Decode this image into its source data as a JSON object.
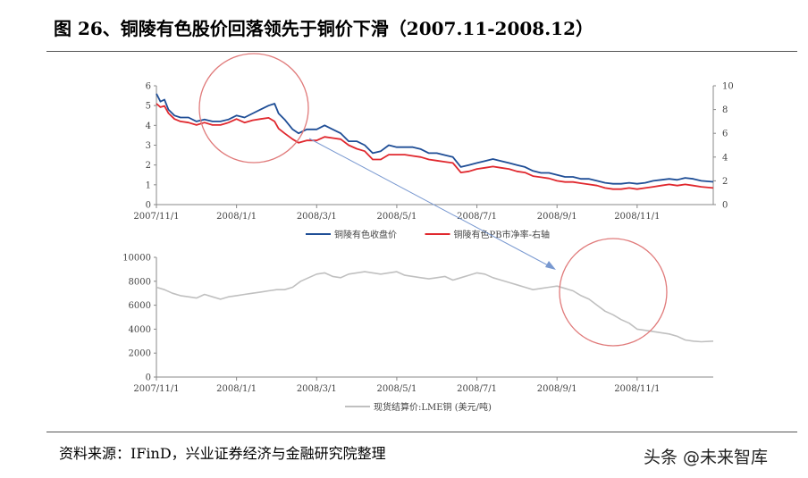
{
  "title": "图 26、铜陵有色股价回落领先于铜价下滑（2007.11-2008.12）",
  "source": "资料来源：IFinD，兴业证券经济与金融研究院整理",
  "watermark": "头条 @未来智库",
  "colors": {
    "blue": "#1f4e96",
    "red": "#e0282e",
    "gray": "#c0c0c0",
    "circle": "#e07a7a",
    "arrow": "#7898d0"
  },
  "chart_data": [
    {
      "type": "line",
      "title": "",
      "x_tick_labels": [
        "2007/11/1",
        "2008/1/1",
        "2008/3/1",
        "2008/5/1",
        "2008/7/1",
        "2008/9/1",
        "2008/11/1"
      ],
      "x_tick_months": [
        0,
        2,
        4,
        6,
        8,
        10,
        12
      ],
      "x_range_months": [
        0,
        13.9
      ],
      "y_left": {
        "ylim": [
          0,
          6
        ],
        "ticks": [
          "0",
          "1",
          "2",
          "3",
          "4",
          "5",
          "6"
        ]
      },
      "y_right": {
        "ylim": [
          0,
          10
        ],
        "ticks": [
          "0",
          "2",
          "4",
          "6",
          "8",
          "10"
        ]
      },
      "legend": [
        "铜陵有色收盘价",
        "铜陵有色PB市净率-右轴"
      ],
      "series": [
        {
          "name": "铜陵有色收盘价",
          "axis": "left",
          "color": "#1f4e96",
          "points": [
            [
              0,
              5.6
            ],
            [
              0.1,
              5.2
            ],
            [
              0.2,
              5.3
            ],
            [
              0.3,
              4.8
            ],
            [
              0.45,
              4.5
            ],
            [
              0.6,
              4.4
            ],
            [
              0.8,
              4.4
            ],
            [
              1.0,
              4.2
            ],
            [
              1.2,
              4.3
            ],
            [
              1.4,
              4.2
            ],
            [
              1.6,
              4.2
            ],
            [
              1.8,
              4.3
            ],
            [
              2.0,
              4.5
            ],
            [
              2.2,
              4.4
            ],
            [
              2.4,
              4.6
            ],
            [
              2.6,
              4.8
            ],
            [
              2.8,
              5.0
            ],
            [
              2.95,
              5.1
            ],
            [
              3.05,
              4.6
            ],
            [
              3.2,
              4.3
            ],
            [
              3.4,
              3.8
            ],
            [
              3.55,
              3.6
            ],
            [
              3.75,
              3.8
            ],
            [
              4.0,
              3.8
            ],
            [
              4.2,
              4.0
            ],
            [
              4.4,
              3.8
            ],
            [
              4.6,
              3.6
            ],
            [
              4.8,
              3.2
            ],
            [
              5.0,
              3.2
            ],
            [
              5.2,
              3.0
            ],
            [
              5.4,
              2.6
            ],
            [
              5.6,
              2.7
            ],
            [
              5.8,
              3.0
            ],
            [
              6.0,
              2.9
            ],
            [
              6.2,
              2.9
            ],
            [
              6.4,
              2.9
            ],
            [
              6.6,
              2.8
            ],
            [
              6.8,
              2.6
            ],
            [
              7.0,
              2.6
            ],
            [
              7.2,
              2.5
            ],
            [
              7.4,
              2.4
            ],
            [
              7.6,
              1.9
            ],
            [
              7.8,
              2.0
            ],
            [
              8.0,
              2.1
            ],
            [
              8.2,
              2.2
            ],
            [
              8.4,
              2.3
            ],
            [
              8.6,
              2.2
            ],
            [
              8.8,
              2.1
            ],
            [
              9.0,
              2.0
            ],
            [
              9.2,
              1.9
            ],
            [
              9.4,
              1.7
            ],
            [
              9.6,
              1.6
            ],
            [
              9.8,
              1.6
            ],
            [
              10.0,
              1.5
            ],
            [
              10.2,
              1.4
            ],
            [
              10.4,
              1.4
            ],
            [
              10.6,
              1.3
            ],
            [
              10.8,
              1.3
            ],
            [
              11.0,
              1.2
            ],
            [
              11.2,
              1.1
            ],
            [
              11.4,
              1.05
            ],
            [
              11.6,
              1.05
            ],
            [
              11.8,
              1.1
            ],
            [
              12.0,
              1.05
            ],
            [
              12.2,
              1.1
            ],
            [
              12.4,
              1.2
            ],
            [
              12.6,
              1.25
            ],
            [
              12.8,
              1.3
            ],
            [
              13.0,
              1.25
            ],
            [
              13.2,
              1.35
            ],
            [
              13.4,
              1.3
            ],
            [
              13.6,
              1.2
            ],
            [
              13.9,
              1.15
            ]
          ]
        },
        {
          "name": "铜陵有色PB市净率-右轴",
          "axis": "right",
          "color": "#e0282e",
          "points": [
            [
              0,
              8.5
            ],
            [
              0.1,
              8.2
            ],
            [
              0.2,
              8.3
            ],
            [
              0.3,
              7.7
            ],
            [
              0.45,
              7.2
            ],
            [
              0.6,
              7.0
            ],
            [
              0.8,
              6.9
            ],
            [
              1.0,
              6.7
            ],
            [
              1.2,
              6.9
            ],
            [
              1.4,
              6.7
            ],
            [
              1.6,
              6.7
            ],
            [
              1.8,
              6.9
            ],
            [
              2.0,
              7.2
            ],
            [
              2.2,
              6.9
            ],
            [
              2.4,
              7.1
            ],
            [
              2.6,
              7.2
            ],
            [
              2.8,
              7.3
            ],
            [
              2.95,
              7.0
            ],
            [
              3.05,
              6.4
            ],
            [
              3.2,
              6.0
            ],
            [
              3.4,
              5.5
            ],
            [
              3.55,
              5.2
            ],
            [
              3.75,
              5.4
            ],
            [
              4.0,
              5.4
            ],
            [
              4.2,
              5.7
            ],
            [
              4.4,
              5.6
            ],
            [
              4.6,
              5.5
            ],
            [
              4.8,
              5.0
            ],
            [
              5.0,
              4.7
            ],
            [
              5.2,
              4.5
            ],
            [
              5.4,
              3.8
            ],
            [
              5.6,
              3.8
            ],
            [
              5.8,
              4.2
            ],
            [
              6.0,
              4.2
            ],
            [
              6.2,
              4.2
            ],
            [
              6.4,
              4.1
            ],
            [
              6.6,
              4.0
            ],
            [
              6.8,
              3.8
            ],
            [
              7.0,
              3.7
            ],
            [
              7.2,
              3.6
            ],
            [
              7.4,
              3.5
            ],
            [
              7.6,
              2.7
            ],
            [
              7.8,
              2.8
            ],
            [
              8.0,
              3.0
            ],
            [
              8.2,
              3.1
            ],
            [
              8.4,
              3.2
            ],
            [
              8.6,
              3.1
            ],
            [
              8.8,
              3.0
            ],
            [
              9.0,
              2.8
            ],
            [
              9.2,
              2.7
            ],
            [
              9.4,
              2.4
            ],
            [
              9.6,
              2.3
            ],
            [
              9.8,
              2.2
            ],
            [
              10.0,
              2.0
            ],
            [
              10.2,
              1.9
            ],
            [
              10.4,
              1.9
            ],
            [
              10.6,
              1.8
            ],
            [
              10.8,
              1.7
            ],
            [
              11.0,
              1.6
            ],
            [
              11.2,
              1.4
            ],
            [
              11.4,
              1.3
            ],
            [
              11.6,
              1.3
            ],
            [
              11.8,
              1.4
            ],
            [
              12.0,
              1.3
            ],
            [
              12.2,
              1.4
            ],
            [
              12.4,
              1.5
            ],
            [
              12.6,
              1.6
            ],
            [
              12.8,
              1.7
            ],
            [
              13.0,
              1.6
            ],
            [
              13.2,
              1.7
            ],
            [
              13.4,
              1.6
            ],
            [
              13.6,
              1.5
            ],
            [
              13.9,
              1.4
            ]
          ]
        }
      ]
    },
    {
      "type": "line",
      "title": "",
      "x_tick_labels": [
        "2007/11/1",
        "2008/1/1",
        "2008/3/1",
        "2008/5/1",
        "2008/7/1",
        "2008/9/1",
        "2008/11/1"
      ],
      "x_tick_months": [
        0,
        2,
        4,
        6,
        8,
        10,
        12
      ],
      "x_range_months": [
        0,
        13.9
      ],
      "y_left": {
        "ylim": [
          0,
          10000
        ],
        "ticks": [
          "0",
          "2000",
          "4000",
          "6000",
          "8000",
          "10000"
        ]
      },
      "legend": [
        "现货结算价:LME铜 (美元/吨)"
      ],
      "series": [
        {
          "name": "现货结算价:LME铜 (美元/吨)",
          "axis": "left",
          "color": "#c0c0c0",
          "points": [
            [
              0,
              7500
            ],
            [
              0.2,
              7300
            ],
            [
              0.4,
              7000
            ],
            [
              0.6,
              6800
            ],
            [
              0.8,
              6700
            ],
            [
              1.0,
              6600
            ],
            [
              1.2,
              6900
            ],
            [
              1.4,
              6700
            ],
            [
              1.6,
              6500
            ],
            [
              1.8,
              6700
            ],
            [
              2.0,
              6800
            ],
            [
              2.2,
              6900
            ],
            [
              2.4,
              7000
            ],
            [
              2.6,
              7100
            ],
            [
              2.8,
              7200
            ],
            [
              3.0,
              7300
            ],
            [
              3.2,
              7300
            ],
            [
              3.4,
              7500
            ],
            [
              3.6,
              8000
            ],
            [
              3.8,
              8300
            ],
            [
              4.0,
              8600
            ],
            [
              4.2,
              8700
            ],
            [
              4.4,
              8400
            ],
            [
              4.6,
              8300
            ],
            [
              4.8,
              8600
            ],
            [
              5.0,
              8700
            ],
            [
              5.2,
              8800
            ],
            [
              5.4,
              8700
            ],
            [
              5.6,
              8600
            ],
            [
              5.8,
              8700
            ],
            [
              6.0,
              8800
            ],
            [
              6.2,
              8500
            ],
            [
              6.4,
              8400
            ],
            [
              6.6,
              8300
            ],
            [
              6.8,
              8200
            ],
            [
              7.0,
              8300
            ],
            [
              7.2,
              8400
            ],
            [
              7.4,
              8100
            ],
            [
              7.6,
              8300
            ],
            [
              7.8,
              8500
            ],
            [
              8.0,
              8700
            ],
            [
              8.2,
              8600
            ],
            [
              8.4,
              8300
            ],
            [
              8.6,
              8100
            ],
            [
              8.8,
              7900
            ],
            [
              9.0,
              7700
            ],
            [
              9.2,
              7500
            ],
            [
              9.4,
              7300
            ],
            [
              9.6,
              7400
            ],
            [
              9.8,
              7500
            ],
            [
              10.0,
              7600
            ],
            [
              10.2,
              7400
            ],
            [
              10.4,
              7200
            ],
            [
              10.6,
              6800
            ],
            [
              10.8,
              6500
            ],
            [
              11.0,
              6000
            ],
            [
              11.2,
              5500
            ],
            [
              11.4,
              5200
            ],
            [
              11.6,
              4800
            ],
            [
              11.8,
              4500
            ],
            [
              12.0,
              4000
            ],
            [
              12.2,
              3900
            ],
            [
              12.4,
              3800
            ],
            [
              12.6,
              3700
            ],
            [
              12.8,
              3600
            ],
            [
              13.0,
              3400
            ],
            [
              13.2,
              3100
            ],
            [
              13.4,
              3000
            ],
            [
              13.6,
              2950
            ],
            [
              13.9,
              3000
            ]
          ]
        }
      ]
    }
  ]
}
